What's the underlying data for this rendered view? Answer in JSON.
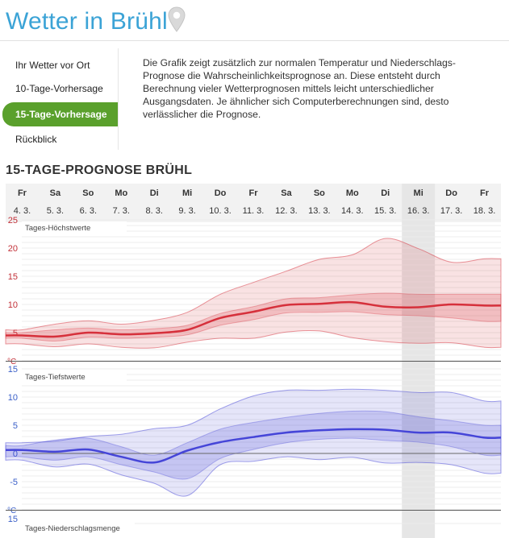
{
  "page": {
    "title": "Wetter in Brühl",
    "section_title": "15-TAGE-PROGNOSE BRÜHL",
    "intro": "Die Grafik zeigt zusätzlich zur normalen Temperatur und Niederschlags-Prognose die Wahrscheinlichkeitsprognose an. Diese entsteht durch Berechnung vieler Wetterprognosen mittels leicht unterschiedlicher Ausgangsdaten. Je ähnlicher sich Computerberechnungen sind, desto verlässlicher die Prognose."
  },
  "icons": {
    "title_icon": "map-pin-icon"
  },
  "colors": {
    "brand": "#3ba3d6",
    "nav_active": "#5aa02c",
    "high_line": "#d6303b",
    "low_line": "#4545d8",
    "highlight_column": "#e6e6e6"
  },
  "nav": {
    "items": [
      {
        "label": "Ihr Wetter vor Ort",
        "active": false
      },
      {
        "label": "10-Tage-Vorhersage",
        "active": false
      },
      {
        "label": "15-Tage-Vorhersage",
        "active": true
      },
      {
        "label": "Rückblick",
        "active": false
      }
    ]
  },
  "chart_data": {
    "type": "line",
    "days": [
      "Fr",
      "Sa",
      "So",
      "Mo",
      "Di",
      "Mi",
      "Do",
      "Fr",
      "Sa",
      "So",
      "Mo",
      "Di",
      "Mi",
      "Do",
      "Fr"
    ],
    "dates": [
      "4. 3.",
      "5. 3.",
      "6. 3.",
      "7. 3.",
      "8. 3.",
      "9. 3.",
      "10. 3.",
      "11. 3.",
      "12. 3.",
      "13. 3.",
      "14. 3.",
      "15. 3.",
      "16. 3.",
      "17. 3.",
      "18. 3."
    ],
    "highlight_day": "16. 3.",
    "unit": "°C",
    "high": {
      "label": "Tages-Höchstwerte",
      "ylim": [
        0,
        25
      ],
      "ticks": [
        5,
        10,
        15,
        20,
        25
      ],
      "median": [
        4.5,
        4.3,
        5.0,
        4.7,
        4.9,
        5.5,
        7.6,
        8.7,
        9.9,
        10.1,
        10.4,
        9.6,
        9.5,
        10.0,
        9.8
      ],
      "p25": [
        4.0,
        3.5,
        4.2,
        4.0,
        4.2,
        4.6,
        6.3,
        7.3,
        8.5,
        8.6,
        8.7,
        8.2,
        8.0,
        7.6,
        7.0
      ],
      "p75": [
        5.0,
        5.5,
        5.8,
        5.5,
        5.7,
        6.3,
        8.4,
        9.6,
        11.0,
        11.2,
        11.7,
        12.0,
        11.8,
        11.8,
        11.8
      ],
      "min": [
        3.0,
        2.5,
        3.0,
        2.4,
        2.3,
        3.3,
        4.0,
        4.0,
        5.1,
        5.3,
        4.1,
        3.4,
        3.1,
        3.2,
        2.4
      ],
      "max": [
        5.5,
        6.5,
        7.1,
        6.5,
        7.2,
        8.6,
        11.8,
        13.9,
        15.9,
        18.0,
        18.8,
        21.7,
        19.9,
        17.5,
        18.1
      ]
    },
    "low": {
      "label": "Tages-Tiefstwerte",
      "ylim": [
        -10,
        15
      ],
      "ticks": [
        -5,
        0,
        5,
        10,
        15
      ],
      "median": [
        0.6,
        0.3,
        0.7,
        -0.6,
        -1.6,
        0.5,
        2.0,
        2.9,
        3.7,
        4.1,
        4.3,
        4.2,
        3.7,
        3.7,
        2.8
      ],
      "p25": [
        -0.6,
        -1.2,
        -0.6,
        -2.0,
        -3.3,
        -4.5,
        -0.9,
        0.7,
        1.9,
        2.5,
        2.7,
        2.3,
        2.0,
        1.2,
        -0.3
      ],
      "p75": [
        1.4,
        2.4,
        2.7,
        1.2,
        -0.3,
        1.9,
        4.3,
        5.5,
        6.4,
        7.1,
        7.5,
        7.4,
        6.5,
        5.8,
        5.0
      ],
      "min": [
        -1.2,
        -2.4,
        -1.9,
        -3.8,
        -5.3,
        -7.5,
        -2.0,
        -1.4,
        -0.6,
        -1.1,
        -0.7,
        -1.7,
        -1.6,
        -2.0,
        -3.5
      ],
      "max": [
        1.9,
        2.2,
        3.0,
        3.4,
        4.4,
        5.0,
        7.9,
        10.2,
        11.2,
        11.2,
        11.4,
        11.2,
        10.8,
        10.8,
        9.3
      ]
    },
    "precip": {
      "label": "Tages-Niederschlagsmenge",
      "ticks": [
        15
      ]
    }
  }
}
